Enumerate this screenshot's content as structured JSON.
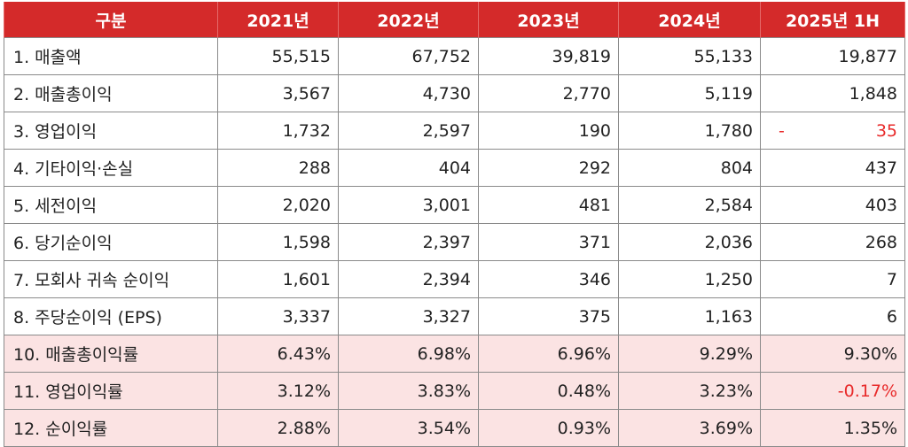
{
  "table": {
    "headers": [
      "구분",
      "2021년",
      "2022년",
      "2023년",
      "2024년",
      "2025년 1H"
    ],
    "rows": [
      {
        "label": "1. 매출액",
        "values": [
          "55,515",
          "67,752",
          "39,819",
          "55,133",
          "19,877"
        ]
      },
      {
        "label": "2. 매출총이익",
        "values": [
          "3,567",
          "4,730",
          "2,770",
          "5,119",
          "1,848"
        ]
      },
      {
        "label": "3. 영업이익",
        "values": [
          "1,732",
          "2,597",
          "190",
          "1,780",
          "35"
        ],
        "last_negative_sign": "-"
      },
      {
        "label": "4. 기타이익·손실",
        "values": [
          "288",
          "404",
          "292",
          "804",
          "437"
        ]
      },
      {
        "label": "5. 세전이익",
        "values": [
          "2,020",
          "3,001",
          "481",
          "2,584",
          "403"
        ]
      },
      {
        "label": "6. 당기순이익",
        "values": [
          "1,598",
          "2,397",
          "371",
          "2,036",
          "268"
        ]
      },
      {
        "label": "7. 모회사 귀속 순이익",
        "values": [
          "1,601",
          "2,394",
          "346",
          "1,250",
          "7"
        ]
      },
      {
        "label": "8. 주당순이익 (EPS)",
        "values": [
          "3,337",
          "3,327",
          "375",
          "1,163",
          "6"
        ]
      },
      {
        "label": "10. 매출총이익률",
        "values": [
          "6.43%",
          "6.98%",
          "6.96%",
          "9.29%",
          "9.30%"
        ]
      },
      {
        "label": "11. 영업이익률",
        "values": [
          "3.12%",
          "3.83%",
          "0.48%",
          "3.23%",
          "-0.17%"
        ]
      },
      {
        "label": "12. 순이익률",
        "values": [
          "2.88%",
          "3.54%",
          "0.93%",
          "3.69%",
          "1.35%"
        ]
      }
    ]
  },
  "colors": {
    "header_bg": "#d42a2a",
    "header_text": "#ffffff",
    "ratio_row_bg": "#fbe3e3",
    "negative_text": "#e82a2a",
    "border": "#8a8a8a"
  }
}
